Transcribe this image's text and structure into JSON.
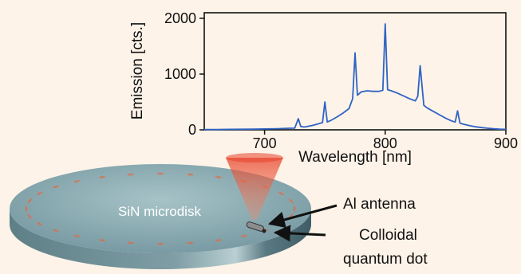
{
  "chart_data": {
    "type": "line",
    "xlabel": "Wavelength [nm]",
    "ylabel": "Emission [cts.]",
    "xlim": [
      650,
      900
    ],
    "ylim": [
      0,
      2100
    ],
    "xticks": [
      700,
      800,
      900
    ],
    "yticks": [
      0,
      1000,
      2000
    ],
    "grid": false,
    "series": [
      {
        "color": "#2f63c4",
        "x": [
          650,
          660,
          670,
          680,
          690,
          700,
          710,
          720,
          725,
          728,
          730,
          733,
          740,
          745,
          748,
          750,
          752,
          755,
          760,
          765,
          770,
          773,
          775,
          777,
          780,
          785,
          790,
          795,
          798,
          800,
          802,
          805,
          810,
          815,
          820,
          825,
          827,
          829,
          832,
          835,
          840,
          845,
          850,
          855,
          858,
          860,
          862,
          865,
          870,
          875,
          880,
          885,
          890,
          895,
          900
        ],
        "y": [
          5,
          6,
          8,
          10,
          12,
          15,
          20,
          28,
          30,
          200,
          60,
          50,
          80,
          110,
          130,
          500,
          140,
          170,
          230,
          300,
          380,
          560,
          1380,
          620,
          680,
          700,
          690,
          690,
          710,
          1900,
          720,
          700,
          660,
          610,
          560,
          520,
          600,
          1150,
          440,
          390,
          330,
          270,
          210,
          160,
          140,
          340,
          120,
          100,
          75,
          55,
          40,
          28,
          18,
          12,
          8
        ]
      }
    ]
  },
  "diagram": {
    "disk_label": "SiN microdisk",
    "antenna_label": "Al antenna",
    "qd_label_line1": "Colloidal",
    "qd_label_line2": "quantum dot",
    "colors": {
      "background": "#fdf3e8",
      "disk_top": "#86a8ad",
      "disk_side": "#4e6f78",
      "emission_spot": "#e8643c",
      "laser": "#e8432a"
    }
  }
}
